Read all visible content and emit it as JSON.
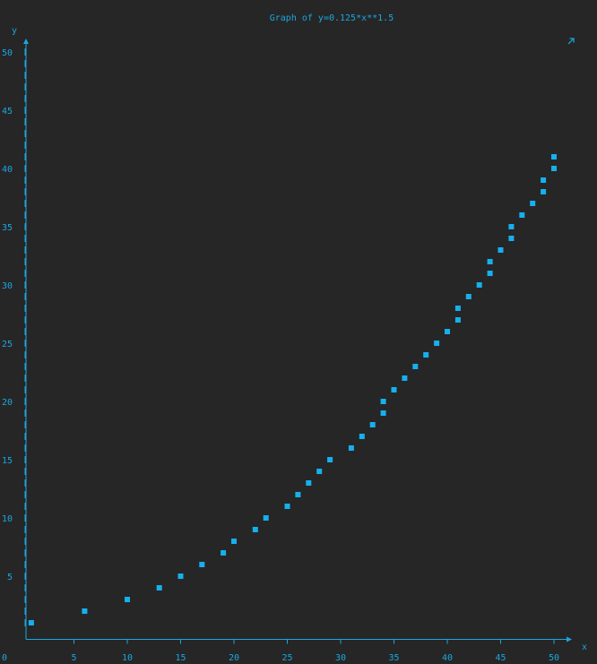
{
  "chart_data": {
    "type": "scatter",
    "title": "Graph of y=0.125*x**1.5",
    "xlabel": "x",
    "ylabel": "y",
    "xlim": [
      0,
      51
    ],
    "ylim": [
      0,
      50
    ],
    "x_ticks": [
      {
        "value": 0,
        "label": "0"
      },
      {
        "value": 5,
        "label": "5"
      },
      {
        "value": 10,
        "label": "10"
      },
      {
        "value": 15,
        "label": "15"
      },
      {
        "value": 20,
        "label": "20"
      },
      {
        "value": 25,
        "label": "25"
      },
      {
        "value": 30,
        "label": "30"
      },
      {
        "value": 35,
        "label": "35"
      },
      {
        "value": 40,
        "label": "40"
      },
      {
        "value": 45,
        "label": "45"
      },
      {
        "value": 50,
        "label": "50"
      }
    ],
    "y_ticks": [
      {
        "value": 5,
        "label": "5"
      },
      {
        "value": 10,
        "label": "10"
      },
      {
        "value": 15,
        "label": "15"
      },
      {
        "value": 20,
        "label": "20"
      },
      {
        "value": 25,
        "label": "25"
      },
      {
        "value": 30,
        "label": "30"
      },
      {
        "value": 35,
        "label": "35"
      },
      {
        "value": 40,
        "label": "40"
      },
      {
        "value": 45,
        "label": "45"
      },
      {
        "value": 50,
        "label": "50"
      }
    ],
    "grid": false,
    "legend": "none",
    "colors": {
      "background": "#262626",
      "axis": "#1aa7e0",
      "points": "#16b0ee"
    },
    "corner_icon": "diagonal-arrow-icon",
    "points": [
      [
        1,
        1
      ],
      [
        6,
        2
      ],
      [
        10,
        3
      ],
      [
        13,
        4
      ],
      [
        15,
        5
      ],
      [
        17,
        6
      ],
      [
        19,
        7
      ],
      [
        20,
        8
      ],
      [
        22,
        9
      ],
      [
        23,
        10
      ],
      [
        25,
        11
      ],
      [
        26,
        12
      ],
      [
        27,
        13
      ],
      [
        28,
        14
      ],
      [
        29,
        15
      ],
      [
        31,
        16
      ],
      [
        32,
        17
      ],
      [
        33,
        18
      ],
      [
        34,
        19
      ],
      [
        34,
        20
      ],
      [
        35,
        21
      ],
      [
        36,
        22
      ],
      [
        37,
        23
      ],
      [
        38,
        24
      ],
      [
        39,
        25
      ],
      [
        40,
        26
      ],
      [
        41,
        27
      ],
      [
        41,
        28
      ],
      [
        42,
        29
      ],
      [
        43,
        30
      ],
      [
        44,
        31
      ],
      [
        44,
        32
      ],
      [
        45,
        33
      ],
      [
        46,
        34
      ],
      [
        46,
        35
      ],
      [
        47,
        36
      ],
      [
        48,
        37
      ],
      [
        49,
        38
      ],
      [
        49,
        39
      ],
      [
        50,
        40
      ],
      [
        50,
        41
      ]
    ]
  }
}
